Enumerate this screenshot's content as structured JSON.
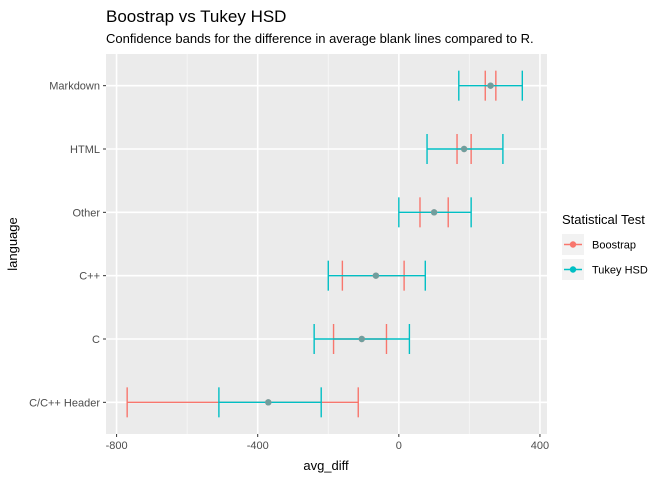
{
  "chart_data": {
    "type": "errorbar",
    "title": "Boostrap vs Tukey HSD",
    "subtitle": "Confidence bands for the difference in average blank lines compared to R.",
    "xlabel": "avg_diff",
    "ylabel": "language",
    "xlim": [
      -830,
      420
    ],
    "xticks": [
      -800,
      -400,
      0,
      400
    ],
    "grid": true,
    "legend": {
      "title": "Statistical Test",
      "placement": "right"
    },
    "categories": [
      "C/C++ Header",
      "C",
      "C++",
      "Other",
      "HTML",
      "Markdown"
    ],
    "estimates": [
      -370,
      -105,
      -65,
      100,
      185,
      260
    ],
    "series": [
      {
        "name": "Boostrap",
        "color": "#F8766D",
        "lower": [
          -770,
          -185,
          -160,
          60,
          165,
          245
        ],
        "upper": [
          -115,
          -35,
          15,
          140,
          205,
          275
        ]
      },
      {
        "name": "Tukey HSD",
        "color": "#00BFC4",
        "lower": [
          -510,
          -240,
          -200,
          0,
          80,
          170
        ],
        "upper": [
          -220,
          30,
          75,
          205,
          295,
          350
        ]
      }
    ]
  }
}
